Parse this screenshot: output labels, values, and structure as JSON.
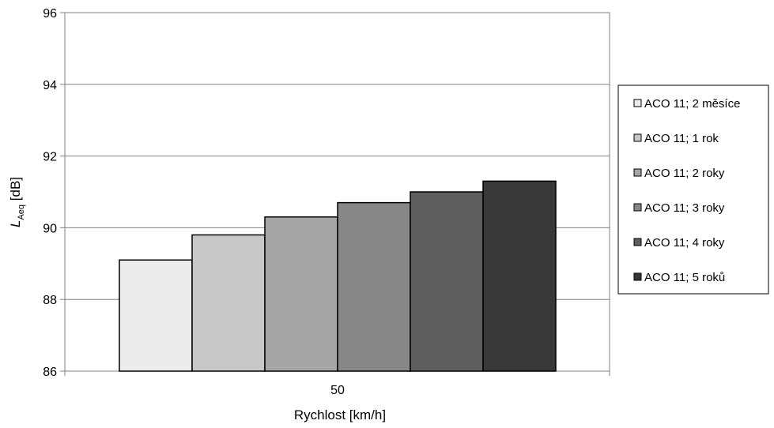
{
  "chart_data": {
    "type": "bar",
    "categories": [
      "50"
    ],
    "series": [
      {
        "name": "ACO 11; 2 měsíce",
        "values": [
          89.1
        ],
        "color": "#ececec"
      },
      {
        "name": "ACO 11; 1 rok",
        "values": [
          89.8
        ],
        "color": "#c8c8c8"
      },
      {
        "name": "ACO 11; 2 roky",
        "values": [
          90.3
        ],
        "color": "#a6a6a6"
      },
      {
        "name": "ACO 11; 3 roky",
        "values": [
          90.7
        ],
        "color": "#878787"
      },
      {
        "name": "ACO 11; 4 roky",
        "values": [
          91.0
        ],
        "color": "#5e5e5e"
      },
      {
        "name": "ACO 11; 5 roků",
        "values": [
          91.3
        ],
        "color": "#383838"
      }
    ],
    "xlabel": "Rychlost [km/h]",
    "ylabel": {
      "main": "L",
      "sub": "Aeq",
      "unit": " [dB]"
    },
    "ylim": [
      86,
      96
    ],
    "yticks": [
      "86",
      "88",
      "90",
      "92",
      "94",
      "96"
    ],
    "grid": true,
    "legend_position": "right"
  }
}
